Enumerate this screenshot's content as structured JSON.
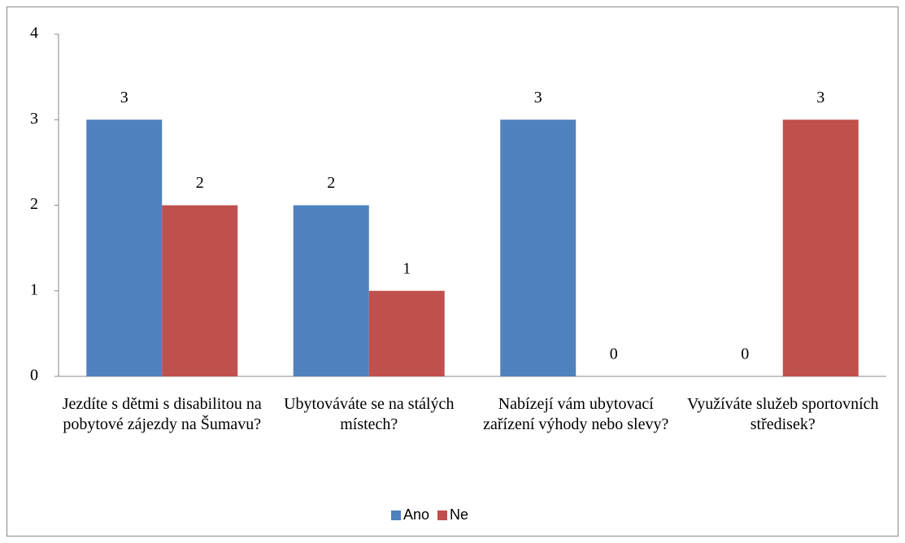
{
  "chart_data": {
    "type": "bar",
    "categories": [
      "Jezdíte s dětmi s disabilitou na pobytové zájezdy na Šumavu?",
      "Ubytováváte se na stálých místech?",
      "Nabízejí vám ubytovací zařízení výhody nebo slevy?",
      "Využíváte služeb sportovních středisek?"
    ],
    "series": [
      {
        "name": "Ano",
        "color": "#4f81bd",
        "values": [
          3,
          2,
          3,
          0
        ]
      },
      {
        "name": "Ne",
        "color": "#c0504d",
        "values": [
          2,
          1,
          0,
          3
        ]
      }
    ],
    "ylim": [
      0,
      4
    ],
    "yticks": [
      0,
      1,
      2,
      3,
      4
    ],
    "grid": false,
    "legend": "bottom"
  }
}
